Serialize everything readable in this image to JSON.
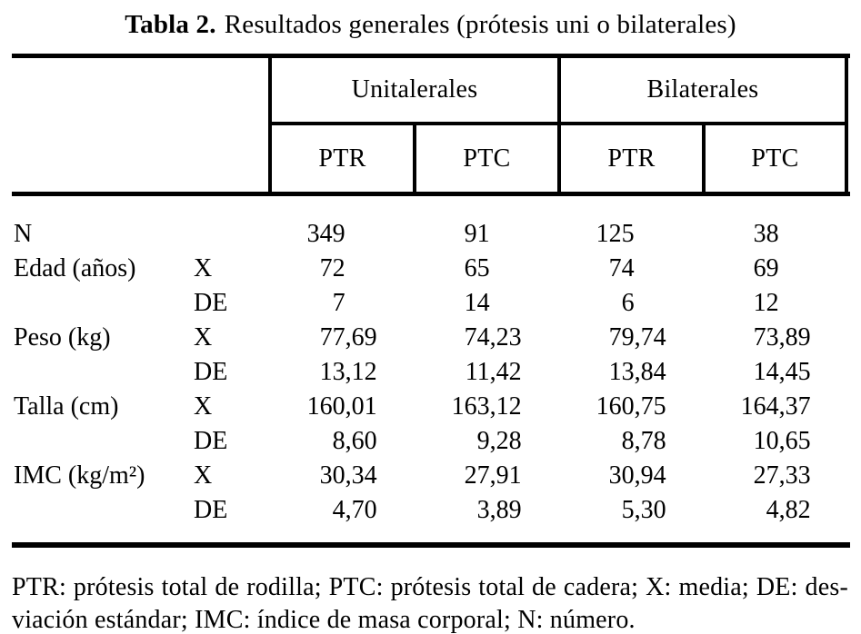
{
  "title": {
    "bold": "Tabla 2.",
    "rest": "Resultados generales (prótesis uni o bilaterales)"
  },
  "table": {
    "groups": [
      {
        "label": "Unitalerales",
        "subs": [
          "PTR",
          "PTC"
        ]
      },
      {
        "label": "Bilaterales",
        "subs": [
          "PTR",
          "PTC"
        ]
      }
    ],
    "rows": [
      {
        "label": "N",
        "sub": "",
        "values": [
          "349",
          "91",
          "125",
          "38"
        ]
      },
      {
        "label": "Edad (años)",
        "sub": "X",
        "values": [
          "72",
          "65",
          "74",
          "69"
        ]
      },
      {
        "label": "",
        "sub": "DE",
        "values": [
          "7",
          "14",
          "6",
          "12"
        ]
      },
      {
        "label": "Peso (kg)",
        "sub": "X",
        "values": [
          "77,69",
          "74,23",
          "79,74",
          "73,89"
        ]
      },
      {
        "label": "",
        "sub": "DE",
        "values": [
          "13,12",
          "11,42",
          "13,84",
          "14,45"
        ]
      },
      {
        "label": "Talla (cm)",
        "sub": "X",
        "values": [
          "160,01",
          "163,12",
          "160,75",
          "164,37"
        ]
      },
      {
        "label": "",
        "sub": "DE",
        "values": [
          "8,60",
          "9,28",
          "8,78",
          "10,65"
        ]
      },
      {
        "label": "IMC (kg/m²)",
        "sub": "X",
        "values": [
          "30,34",
          "27,91",
          "30,94",
          "27,33"
        ]
      },
      {
        "label": "",
        "sub": "DE",
        "values": [
          "4,70",
          "3,89",
          "5,30",
          "4,82"
        ]
      }
    ]
  },
  "footnote": {
    "line1": "PTR: prótesis total de rodilla; PTC: prótesis total de cadera; X: media; DE: des-",
    "line2": "viación estándar; IMC: índice de masa corporal; N: número."
  },
  "colors": {
    "ink": "#000000",
    "paper": "#ffffff"
  }
}
